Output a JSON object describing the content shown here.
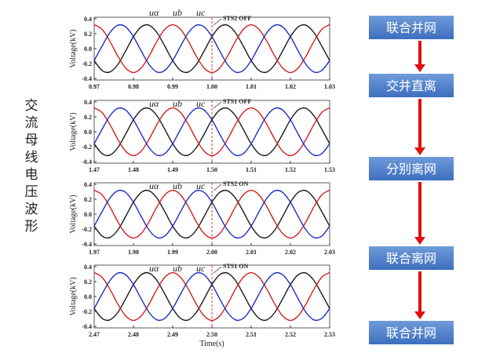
{
  "side_label": "交流母线电压波形",
  "flow_steps": [
    "联合并网",
    "交并直离",
    "分别离网",
    "联合离网",
    "联合并网"
  ],
  "chart_data": [
    {
      "type": "line",
      "ylabel": "Voltage(kV)",
      "annotation": "STS2 OFF",
      "event_x": 1.0,
      "x": [
        0.97,
        0.972,
        0.974,
        0.976,
        0.978,
        0.98,
        0.982,
        0.984,
        0.986,
        0.988,
        0.99,
        0.992,
        0.994,
        0.996,
        0.998,
        1.0,
        1.002,
        1.004,
        1.006,
        1.008,
        1.01,
        1.012,
        1.014,
        1.016,
        1.018,
        1.02,
        1.022,
        1.024,
        1.026,
        1.028,
        1.03
      ],
      "xlim": [
        0.97,
        1.03
      ],
      "xticks": [
        0.97,
        0.98,
        0.99,
        {
          "value": 1.0,
          "label": "1.00"
        },
        1.01,
        1.02,
        1.03
      ],
      "ylim": [
        -0.42,
        0.42
      ],
      "yticks": [
        0.4,
        0.2,
        {
          "value": 0,
          "label": "0.0"
        },
        -0.2,
        -0.4
      ],
      "series": [
        {
          "name": "uα",
          "color": "#1a1a1a",
          "values": [
            -0.16,
            -0.292,
            -0.313,
            -0.214,
            -0.033,
            0.16,
            0.292,
            0.313,
            0.214,
            0.033,
            -0.16,
            -0.292,
            -0.313,
            -0.214,
            -0.033,
            0.16,
            0.292,
            0.313,
            0.214,
            0.033,
            -0.16,
            -0.292,
            -0.313,
            -0.214,
            -0.033,
            0.16,
            0.292,
            0.313,
            0.214,
            0.033,
            -0.16
          ]
        },
        {
          "name": "ub",
          "color": "#d42020",
          "values": [
            0.32,
            0.259,
            0.099,
            -0.099,
            -0.259,
            -0.32,
            -0.259,
            -0.099,
            0.099,
            0.259,
            0.32,
            0.259,
            0.099,
            -0.099,
            -0.259,
            -0.32,
            -0.259,
            -0.099,
            0.099,
            0.259,
            0.32,
            0.259,
            0.099,
            -0.099,
            -0.259,
            -0.32,
            -0.259,
            -0.099,
            0.099,
            0.259,
            0.32
          ]
        },
        {
          "name": "uc",
          "color": "#1c2fc4",
          "values": [
            -0.16,
            0.033,
            0.214,
            0.313,
            0.292,
            0.16,
            -0.033,
            -0.214,
            -0.313,
            -0.292,
            -0.16,
            0.033,
            0.214,
            0.313,
            0.292,
            0.16,
            -0.033,
            -0.214,
            -0.313,
            -0.292,
            -0.16,
            0.033,
            0.214,
            0.313,
            0.292,
            0.16,
            -0.033,
            -0.214,
            -0.313,
            -0.292,
            -0.16
          ]
        }
      ]
    },
    {
      "type": "line",
      "ylabel": "Voltage(kV)",
      "annotation": "STS1 OFF",
      "event_x": 1.5,
      "x": [
        1.47,
        1.472,
        1.474,
        1.476,
        1.478,
        1.48,
        1.482,
        1.484,
        1.486,
        1.488,
        1.49,
        1.492,
        1.494,
        1.496,
        1.498,
        1.5,
        1.502,
        1.504,
        1.506,
        1.508,
        1.51,
        1.512,
        1.514,
        1.516,
        1.518,
        1.52,
        1.522,
        1.524,
        1.526,
        1.528,
        1.53
      ],
      "xlim": [
        1.47,
        1.53
      ],
      "xticks": [
        1.47,
        1.48,
        1.49,
        {
          "value": 1.5,
          "label": "1.50"
        },
        1.51,
        1.52,
        1.53
      ],
      "ylim": [
        -0.42,
        0.42
      ],
      "yticks": [
        0.4,
        0.2,
        {
          "value": 0,
          "label": "0.0"
        },
        -0.2,
        -0.4
      ],
      "series": [
        {
          "name": "uα",
          "color": "#1a1a1a",
          "values": [
            -0.16,
            -0.292,
            -0.313,
            -0.214,
            -0.033,
            0.16,
            0.292,
            0.313,
            0.214,
            0.033,
            -0.16,
            -0.292,
            -0.313,
            -0.214,
            -0.033,
            0.16,
            0.292,
            0.313,
            0.214,
            0.033,
            -0.16,
            -0.292,
            -0.313,
            -0.214,
            -0.033,
            0.16,
            0.292,
            0.313,
            0.214,
            0.033,
            -0.16
          ]
        },
        {
          "name": "ub",
          "color": "#d42020",
          "values": [
            0.32,
            0.259,
            0.099,
            -0.099,
            -0.259,
            -0.32,
            -0.259,
            -0.099,
            0.099,
            0.259,
            0.32,
            0.259,
            0.099,
            -0.099,
            -0.259,
            -0.32,
            -0.259,
            -0.099,
            0.099,
            0.259,
            0.32,
            0.259,
            0.099,
            -0.099,
            -0.259,
            -0.32,
            -0.259,
            -0.099,
            0.099,
            0.259,
            0.32
          ]
        },
        {
          "name": "uc",
          "color": "#1c2fc4",
          "values": [
            -0.16,
            0.033,
            0.214,
            0.313,
            0.292,
            0.16,
            -0.033,
            -0.214,
            -0.313,
            -0.292,
            -0.16,
            0.033,
            0.214,
            0.313,
            0.292,
            0.16,
            -0.033,
            -0.214,
            -0.313,
            -0.292,
            -0.16,
            0.033,
            0.214,
            0.313,
            0.292,
            0.16,
            -0.033,
            -0.214,
            -0.313,
            -0.292,
            -0.16
          ]
        }
      ]
    },
    {
      "type": "line",
      "ylabel": "Voltage(kV)",
      "annotation": "STS2 ON",
      "event_x": 2.0,
      "x": [
        1.97,
        1.972,
        1.974,
        1.976,
        1.978,
        1.98,
        1.982,
        1.984,
        1.986,
        1.988,
        1.99,
        1.992,
        1.994,
        1.996,
        1.998,
        2.0,
        2.002,
        2.004,
        2.006,
        2.008,
        2.01,
        2.012,
        2.014,
        2.016,
        2.018,
        2.02,
        2.022,
        2.024,
        2.026,
        2.028,
        2.03
      ],
      "xlim": [
        1.97,
        2.03
      ],
      "xticks": [
        1.97,
        1.98,
        1.99,
        {
          "value": 2.0,
          "label": "2.00"
        },
        2.01,
        2.02,
        2.03
      ],
      "ylim": [
        -0.42,
        0.42
      ],
      "yticks": [
        0.4,
        0.2,
        {
          "value": 0,
          "label": "0.0"
        },
        -0.2,
        -0.4
      ],
      "series": [
        {
          "name": "uα",
          "color": "#1a1a1a",
          "values": [
            -0.16,
            -0.292,
            -0.313,
            -0.214,
            -0.033,
            0.16,
            0.292,
            0.313,
            0.214,
            0.033,
            -0.16,
            -0.292,
            -0.313,
            -0.214,
            -0.033,
            0.16,
            0.292,
            0.313,
            0.214,
            0.033,
            -0.16,
            -0.292,
            -0.313,
            -0.214,
            -0.033,
            0.16,
            0.292,
            0.313,
            0.214,
            0.033,
            -0.16
          ]
        },
        {
          "name": "ub",
          "color": "#d42020",
          "values": [
            0.32,
            0.259,
            0.099,
            -0.099,
            -0.259,
            -0.32,
            -0.259,
            -0.099,
            0.099,
            0.259,
            0.32,
            0.259,
            0.099,
            -0.099,
            -0.259,
            -0.32,
            -0.259,
            -0.099,
            0.099,
            0.259,
            0.32,
            0.259,
            0.099,
            -0.099,
            -0.259,
            -0.32,
            -0.259,
            -0.099,
            0.099,
            0.259,
            0.32
          ]
        },
        {
          "name": "uc",
          "color": "#1c2fc4",
          "values": [
            -0.16,
            0.033,
            0.214,
            0.313,
            0.292,
            0.16,
            -0.033,
            -0.214,
            -0.313,
            -0.292,
            -0.16,
            0.033,
            0.214,
            0.313,
            0.292,
            0.16,
            -0.033,
            -0.214,
            -0.313,
            -0.292,
            -0.16,
            0.033,
            0.214,
            0.313,
            0.292,
            0.16,
            -0.033,
            -0.214,
            -0.313,
            -0.292,
            -0.16
          ]
        }
      ]
    },
    {
      "type": "line",
      "ylabel": "Voltage(kV)",
      "xlabel": "Time(s)",
      "annotation": "STS1 ON",
      "event_x": 2.5,
      "x": [
        2.47,
        2.472,
        2.474,
        2.476,
        2.478,
        2.48,
        2.482,
        2.484,
        2.486,
        2.488,
        2.49,
        2.492,
        2.494,
        2.496,
        2.498,
        2.5,
        2.502,
        2.504,
        2.506,
        2.508,
        2.51,
        2.512,
        2.514,
        2.516,
        2.518,
        2.52,
        2.522,
        2.524,
        2.526,
        2.528,
        2.53
      ],
      "xlim": [
        2.47,
        2.53
      ],
      "xticks": [
        2.47,
        2.48,
        2.49,
        {
          "value": 2.5,
          "label": "2.50"
        },
        2.51,
        2.52,
        2.53
      ],
      "ylim": [
        -0.42,
        0.42
      ],
      "yticks": [
        0.4,
        0.2,
        {
          "value": 0,
          "label": "0.0"
        },
        -0.2,
        -0.4
      ],
      "series": [
        {
          "name": "uα",
          "color": "#1a1a1a",
          "values": [
            -0.16,
            -0.292,
            -0.313,
            -0.214,
            -0.033,
            0.16,
            0.292,
            0.313,
            0.214,
            0.033,
            -0.16,
            -0.292,
            -0.313,
            -0.214,
            -0.033,
            0.16,
            0.292,
            0.313,
            0.214,
            0.033,
            -0.16,
            -0.292,
            -0.313,
            -0.214,
            -0.033,
            0.16,
            0.292,
            0.313,
            0.214,
            0.033,
            -0.16
          ]
        },
        {
          "name": "ub",
          "color": "#d42020",
          "values": [
            0.32,
            0.259,
            0.099,
            -0.099,
            -0.259,
            -0.32,
            -0.259,
            -0.099,
            0.099,
            0.259,
            0.32,
            0.259,
            0.099,
            -0.099,
            -0.259,
            -0.32,
            -0.259,
            -0.099,
            0.099,
            0.259,
            0.32,
            0.259,
            0.099,
            -0.099,
            -0.259,
            -0.32,
            -0.259,
            -0.099,
            0.099,
            0.259,
            0.32
          ]
        },
        {
          "name": "uc",
          "color": "#1c2fc4",
          "values": [
            -0.16,
            0.033,
            0.214,
            0.313,
            0.292,
            0.16,
            -0.033,
            -0.214,
            -0.313,
            -0.292,
            -0.16,
            0.033,
            0.214,
            0.313,
            0.292,
            0.16,
            -0.033,
            -0.214,
            -0.313,
            -0.292,
            -0.16,
            0.033,
            0.214,
            0.313,
            0.292,
            0.16,
            -0.033,
            -0.214,
            -0.313,
            -0.292,
            -0.16
          ]
        }
      ]
    }
  ]
}
